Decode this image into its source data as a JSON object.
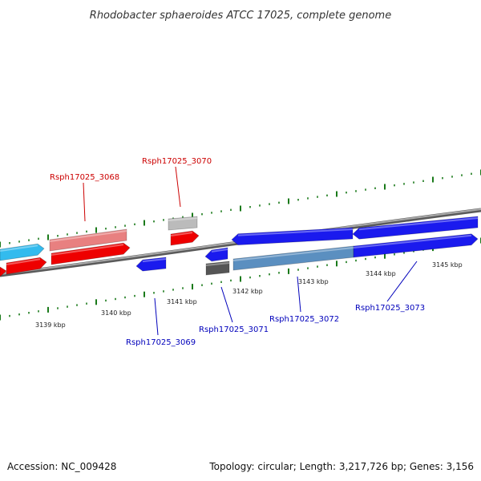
{
  "title": "Rhodobacter sphaeroides ATCC 17025, complete genome",
  "footer": {
    "accession": "Accession: NC_009428",
    "summary": "Topology: circular; Length: 3,217,726 bp; Genes: 3,156"
  },
  "colors": {
    "backbone": "#8a8a8a",
    "tick": "#1a7a1a",
    "label_forward": "#cc0000",
    "label_reverse": "#0000bb",
    "red": "#ee0000",
    "pink": "#e88080",
    "blue": "#1a1aee",
    "cyan": "#33bbee",
    "grey": "#bbbbbb",
    "dark_grey": "#555555",
    "steel_blue": "#5b8fc0"
  },
  "scale_labels": [
    "3139 kbp",
    "3140 kbp",
    "3141 kbp",
    "3142 kbp",
    "3143 kbp",
    "3144 kbp",
    "3145 kbp"
  ],
  "gene_labels": [
    {
      "text": "Rsph17025_3068",
      "strand": "forward"
    },
    {
      "text": "Rsph17025_3070",
      "strand": "forward"
    },
    {
      "text": "Rsph17025_3069",
      "strand": "reverse"
    },
    {
      "text": "Rsph17025_3071",
      "strand": "reverse"
    },
    {
      "text": "Rsph17025_3072",
      "strand": "reverse"
    },
    {
      "text": "Rsph17025_3073",
      "strand": "reverse"
    }
  ],
  "features": [
    {
      "name": "feature-cyan-left",
      "color": "cyan",
      "strand": "forward"
    },
    {
      "name": "feature-pink-3068",
      "color": "pink",
      "strand": "forward"
    },
    {
      "name": "feature-grey-3070",
      "color": "grey",
      "strand": "forward"
    },
    {
      "name": "feature-red-left-small",
      "color": "red",
      "strand": "reverse"
    },
    {
      "name": "feature-red-left",
      "color": "red",
      "strand": "forward"
    },
    {
      "name": "feature-red-3068",
      "color": "red",
      "strand": "forward"
    },
    {
      "name": "feature-red-3070",
      "color": "red",
      "strand": "forward"
    },
    {
      "name": "feature-blue-3069",
      "color": "blue",
      "strand": "reverse"
    },
    {
      "name": "feature-blue-small",
      "color": "blue",
      "strand": "reverse"
    },
    {
      "name": "feature-darkgrey-3071",
      "color": "dark_grey",
      "strand": "forward"
    },
    {
      "name": "feature-steelblue-3072",
      "color": "steel_blue",
      "strand": "forward"
    },
    {
      "name": "feature-blue-3073-right",
      "color": "blue",
      "strand": "forward"
    },
    {
      "name": "feature-blue-upper-left",
      "color": "blue",
      "strand": "reverse"
    },
    {
      "name": "feature-blue-upper-right",
      "color": "blue",
      "strand": "reverse"
    }
  ]
}
